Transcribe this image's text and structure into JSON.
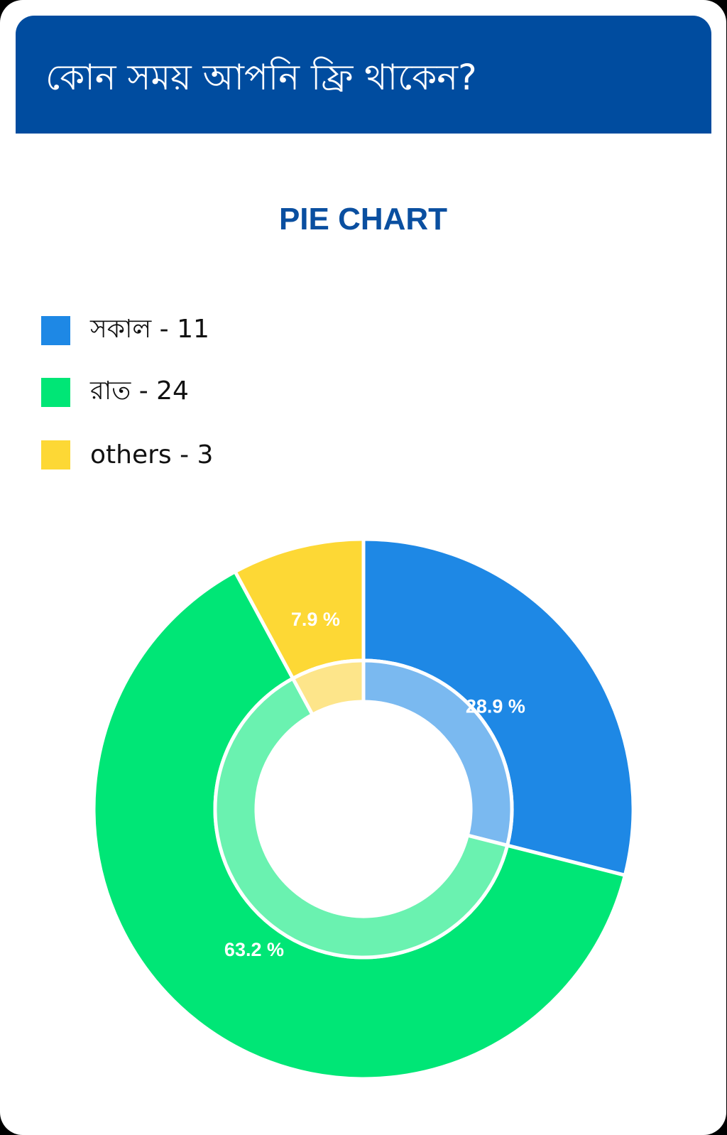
{
  "header": {
    "title": "কোন সময় আপনি ফ্রি থাকেন?"
  },
  "chart_data": {
    "type": "pie",
    "variant": "donut",
    "title": "PIE CHART",
    "legend_placement": "top-left",
    "categories": [
      "সকাল",
      "রাত",
      "others"
    ],
    "values": [
      11,
      24,
      3
    ],
    "percent_labels": [
      "28.9 %",
      "63.2 %",
      "7.9 %"
    ],
    "legend_labels": [
      "সকাল - 11",
      "রাত - 24",
      "others - 3"
    ],
    "colors": [
      "#1e88e5",
      "#00e676",
      "#fdd835"
    ],
    "inner_colors": [
      "#7ab9f0",
      "#6af2b0",
      "#fde58a"
    ]
  }
}
